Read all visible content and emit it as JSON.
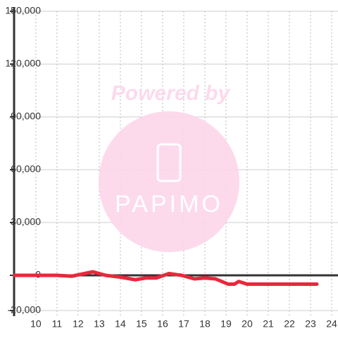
{
  "chart_data": {
    "type": "line",
    "watermark": {
      "text": "Powered by",
      "logo": "PAPIMO"
    },
    "x": [
      9,
      10,
      11,
      11.7,
      12.3,
      12.7,
      13.3,
      14,
      14.7,
      15.2,
      15.7,
      16.3,
      16.9,
      17.5,
      18,
      18.5,
      19.1,
      19.4,
      19.6,
      20,
      21,
      22,
      23.3
    ],
    "series": [
      {
        "color": "#e8283c",
        "values": [
          0,
          0,
          0,
          -500,
          1000,
          2000,
          0,
          -1000,
          -2500,
          -1500,
          -1500,
          1000,
          0,
          -2000,
          -1500,
          -2000,
          -5000,
          -5000,
          -3500,
          -5000,
          -5000,
          -5000,
          -5000
        ]
      }
    ],
    "xlim": [
      8.97,
      24.3
    ],
    "xticks": [
      10,
      11,
      12,
      13,
      14,
      15,
      16,
      17,
      18,
      19,
      20,
      21,
      22,
      23,
      24
    ],
    "ylim": [
      -20000,
      150000
    ],
    "yticks": [
      {
        "value": 150000,
        "label": "150,000"
      },
      {
        "value": 120000,
        "label": "120,000"
      },
      {
        "value": 90000,
        "label": "90,000"
      },
      {
        "value": 60000,
        "label": "60,000"
      },
      {
        "value": 30000,
        "label": "30,000"
      },
      0,
      {
        "value": -20000,
        "label": "-20,000"
      }
    ],
    "grid": true
  }
}
